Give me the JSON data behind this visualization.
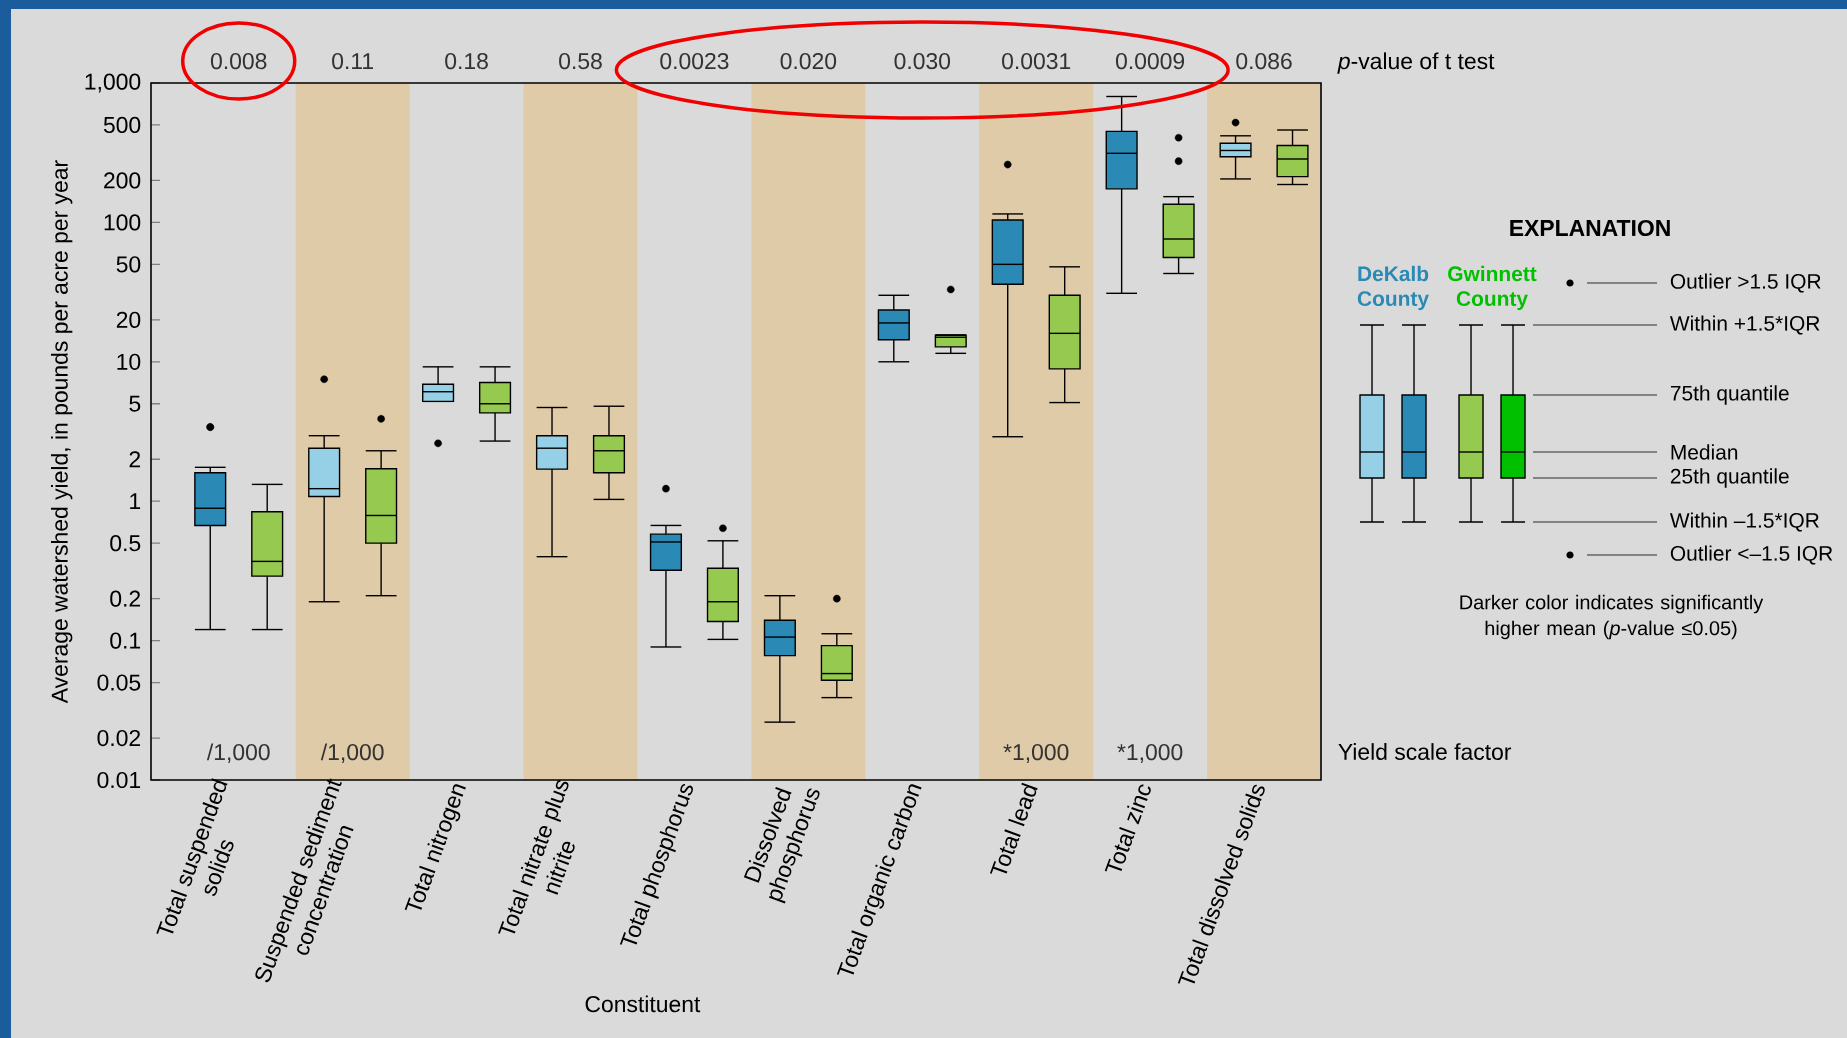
{
  "chart_data": {
    "type": "box",
    "ylabel": "Average watershed yield, in pounds per acre per year",
    "xlabel": "Constituent",
    "legend_title": "EXPLANATION",
    "legend": "right",
    "log": "y",
    "ylim": [
      0.01,
      1000
    ],
    "yticks": [
      0.01,
      0.02,
      0.05,
      0.1,
      0.2,
      0.5,
      1,
      2,
      5,
      10,
      20,
      50,
      100,
      200,
      500,
      {
        "value": 1000,
        "label": "1,000"
      }
    ],
    "categories": [
      "Total suspended solids",
      "Suspended sediment concentration",
      "Total nitrogen",
      "Total nitrate plus nitrite",
      "Total phosphorus",
      "Dissolved phosphorus",
      "Total organic carbon",
      "Total lead",
      "Total zinc",
      "Total dissolved solids"
    ],
    "series": [
      {
        "name": "DeKalb County",
        "color": "#2a8ab5",
        "colors": [
          "#2a8ab5",
          "#96d0e6",
          "#96d0e6",
          "#96d0e6",
          "#2a8ab5",
          "#2a8ab5",
          "#2a8ab5",
          "#2a8ab5",
          "#2a8ab5",
          "#96d0e6"
        ],
        "boxes": [
          {
            "low": 0.12,
            "q1": 0.67,
            "median": 0.89,
            "q3": 1.6,
            "high": 1.75,
            "outliers": [
              3.4,
              3.4
            ]
          },
          {
            "low": 0.19,
            "q1": 1.08,
            "median": 1.23,
            "q3": 2.4,
            "high": 2.95,
            "outliers": [
              7.5
            ]
          },
          {
            "low": 5.2,
            "q1": 5.2,
            "median": 6.1,
            "q3": 6.9,
            "high": 9.2,
            "outliers": [
              2.6
            ]
          },
          {
            "low": 0.4,
            "q1": 1.7,
            "median": 2.4,
            "q3": 2.95,
            "high": 4.7
          },
          {
            "low": 0.09,
            "q1": 0.32,
            "median": 0.51,
            "q3": 0.58,
            "high": 0.67,
            "outliers": [
              1.23
            ]
          },
          {
            "low": 0.026,
            "q1": 0.078,
            "median": 0.106,
            "q3": 0.14,
            "high": 0.21
          },
          {
            "low": 10,
            "q1": 14.4,
            "median": 19,
            "q3": 23.5,
            "high": 30
          },
          {
            "low": 2.9,
            "q1": 36,
            "median": 50,
            "q3": 104,
            "high": 115,
            "outliers": [
              260
            ]
          },
          {
            "low": 31,
            "q1": 174,
            "median": 313,
            "q3": 450,
            "high": 800
          },
          {
            "low": 205,
            "q1": 296,
            "median": 328,
            "q3": 370,
            "high": 418,
            "outliers": [
              520
            ]
          }
        ]
      },
      {
        "name": "Gwinnett County",
        "color": "#00c000",
        "colors": [
          "#95c94f",
          "#95c94f",
          "#95c94f",
          "#95c94f",
          "#95c94f",
          "#95c94f",
          "#95c94f",
          "#95c94f",
          "#95c94f",
          "#95c94f"
        ],
        "boxes": [
          {
            "low": 0.12,
            "q1": 0.29,
            "median": 0.37,
            "q3": 0.84,
            "high": 1.32
          },
          {
            "low": 0.21,
            "q1": 0.5,
            "median": 0.79,
            "q3": 1.71,
            "high": 2.3,
            "outliers": [
              3.9
            ]
          },
          {
            "low": 2.7,
            "q1": 4.3,
            "median": 5.0,
            "q3": 7.1,
            "high": 9.2
          },
          {
            "low": 1.03,
            "q1": 1.6,
            "median": 2.3,
            "q3": 2.95,
            "high": 4.8
          },
          {
            "low": 0.102,
            "q1": 0.137,
            "median": 0.19,
            "q3": 0.33,
            "high": 0.52,
            "outliers": [
              0.64
            ]
          },
          {
            "low": 0.039,
            "q1": 0.052,
            "median": 0.058,
            "q3": 0.092,
            "high": 0.112,
            "outliers": [
              0.2
            ]
          },
          {
            "low": 11.5,
            "q1": 12.8,
            "median": 15,
            "q3": 15.5,
            "high": 15.6,
            "outliers": [
              33
            ]
          },
          {
            "low": 5.1,
            "q1": 8.9,
            "median": 16,
            "q3": 30,
            "high": 48
          },
          {
            "low": 43,
            "q1": 56,
            "median": 76,
            "q3": 135,
            "high": 153,
            "outliers": [
              405,
              275
            ]
          },
          {
            "low": 187,
            "q1": 213,
            "median": 285,
            "q3": 356,
            "high": 460
          }
        ]
      }
    ],
    "bands": [
      {
        "axis": "x",
        "from": "Suspended sediment concentration",
        "to": "Suspended sediment concentration",
        "color": "#e0cba8"
      },
      {
        "axis": "x",
        "from": "Total nitrate plus nitrite",
        "to": "Total nitrate plus nitrite",
        "color": "#e0cba8"
      },
      {
        "axis": "x",
        "from": "Dissolved phosphorus",
        "to": "Dissolved phosphorus",
        "color": "#e0cba8"
      },
      {
        "axis": "x",
        "from": "Total lead",
        "to": "Total lead",
        "color": "#e0cba8"
      },
      {
        "axis": "x",
        "from": "Total dissolved solids",
        "to": "Total dissolved solids",
        "color": "#e0cba8"
      }
    ],
    "annotations": [
      "Outlier >1.5 IQR",
      "Within +1.5*IQR",
      "75th quantile",
      "Median",
      "25th quantile",
      "Within –1.5*IQR",
      "Outlier <–1.5 IQR",
      "Darker color indicates significantly higher mean (*p*-value ≤0.05)",
      "*p*-value of t test",
      "Yield scale factor",
      "0.008",
      "0.11",
      "0.18",
      "0.58",
      "0.0023",
      "0.020",
      "0.030",
      "0.0031",
      "0.0009",
      "0.086",
      "/1,000",
      "/1,000",
      "*1,000",
      "*1,000"
    ]
  }
}
